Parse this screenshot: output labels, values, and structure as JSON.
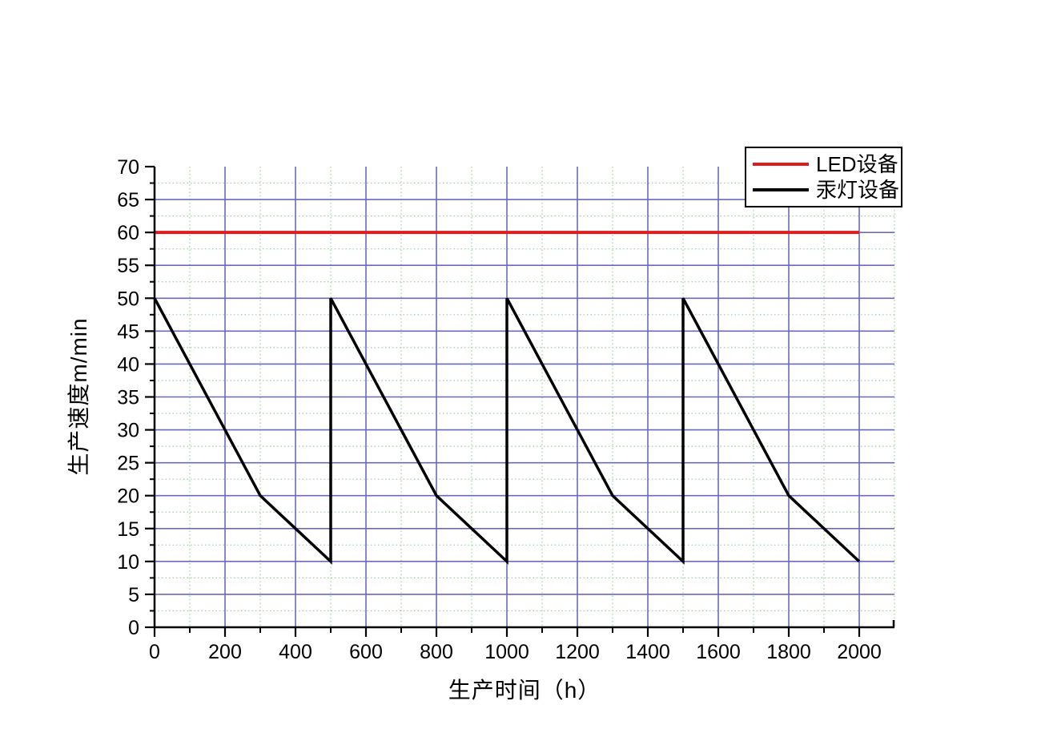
{
  "chart_data": {
    "type": "line",
    "title": "",
    "xlabel": "生产时间（h）",
    "ylabel": "生产速度m/min",
    "xlim": [
      0,
      2100
    ],
    "ylim": [
      0,
      70
    ],
    "x_major_ticks": [
      0,
      200,
      400,
      600,
      800,
      1000,
      1200,
      1400,
      1600,
      1800,
      2000
    ],
    "x_minor_step": 100,
    "y_major_ticks": [
      0,
      5,
      10,
      15,
      20,
      25,
      30,
      35,
      40,
      45,
      50,
      55,
      60,
      65,
      70
    ],
    "y_minor_step": 2.5,
    "grid": {
      "major_color": "#6a6abc",
      "minor_color": "#9bd09b",
      "minor_style": "dotted",
      "grid_on": true
    },
    "axis_color": "#000000",
    "legend": {
      "position": "top-right",
      "entries": [
        "LED设备",
        "汞灯设备"
      ]
    },
    "series": [
      {
        "name": "LED设备",
        "color": "#dd1d1d",
        "width": 4,
        "points": [
          [
            0,
            60
          ],
          [
            2000,
            60
          ]
        ]
      },
      {
        "name": "汞灯设备",
        "color": "#000000",
        "width": 3.5,
        "points": [
          [
            0,
            50
          ],
          [
            300,
            20
          ],
          [
            500,
            10
          ],
          [
            500,
            50
          ],
          [
            800,
            20
          ],
          [
            1000,
            10
          ],
          [
            1000,
            50
          ],
          [
            1300,
            20
          ],
          [
            1500,
            10
          ],
          [
            1500,
            50
          ],
          [
            1800,
            20
          ],
          [
            2000,
            10
          ]
        ]
      }
    ]
  }
}
